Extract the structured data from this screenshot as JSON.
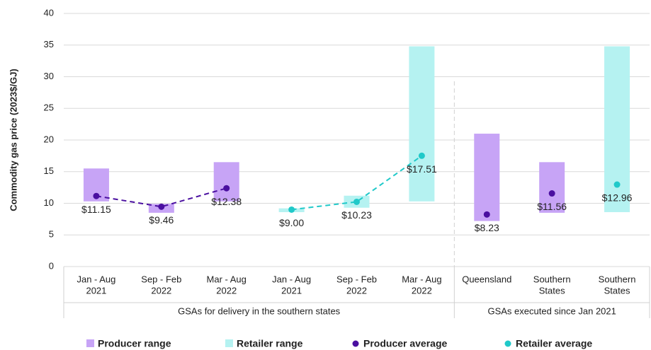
{
  "chart_data": {
    "type": "range-average",
    "y_label": "Commodity gas price (2023$/GJ)",
    "ylim": [
      0,
      40
    ],
    "yticks": [
      0,
      5,
      10,
      15,
      20,
      25,
      30,
      35,
      40
    ],
    "grid": true,
    "groups": [
      {
        "label": "GSAs for delivery in the southern states",
        "connected": true,
        "categories": [
          [
            "Jan - Aug",
            "2021"
          ],
          [
            "Sep - Feb",
            "2022"
          ],
          [
            "Mar - Aug",
            "2022"
          ],
          [
            "Jan - Aug",
            "2021"
          ],
          [
            "Sep - Feb",
            "2022"
          ],
          [
            "Mar - Aug",
            "2022"
          ]
        ]
      },
      {
        "label": "GSAs executed since Jan 2021",
        "connected": false,
        "categories": [
          [
            "Queensland"
          ],
          [
            "Southern",
            "States"
          ],
          [
            "Southern",
            "States"
          ]
        ]
      }
    ],
    "series": [
      {
        "name": "Producer range",
        "kind": "range",
        "color": "#c7a4f6",
        "values": [
          [
            10.3,
            15.5
          ],
          [
            8.5,
            9.9
          ],
          [
            10.3,
            16.5
          ],
          null,
          null,
          null,
          [
            7.2,
            21
          ],
          [
            8.5,
            16.5
          ],
          null
        ]
      },
      {
        "name": "Retailer range",
        "kind": "range",
        "color": "#b5f2f1",
        "values": [
          null,
          null,
          null,
          [
            8.6,
            9.2
          ],
          [
            9.3,
            11.2
          ],
          [
            10.3,
            34.8
          ],
          null,
          null,
          [
            8.6,
            34.8
          ]
        ]
      },
      {
        "name": "Producer average",
        "kind": "average",
        "color": "#4a0fa0",
        "values": [
          11.15,
          9.46,
          12.38,
          null,
          null,
          null,
          8.23,
          11.56,
          null
        ],
        "value_labels": [
          "$11.15",
          "$9.46",
          "$12.38",
          null,
          null,
          null,
          "$8.23",
          "$11.56",
          null
        ]
      },
      {
        "name": "Retailer average",
        "kind": "average",
        "color": "#20c9c9",
        "values": [
          null,
          null,
          null,
          9.0,
          10.23,
          17.51,
          null,
          null,
          12.96
        ],
        "value_labels": [
          null,
          null,
          null,
          "$9.00",
          "$10.23",
          "$17.51",
          null,
          null,
          "$12.96"
        ]
      }
    ]
  }
}
